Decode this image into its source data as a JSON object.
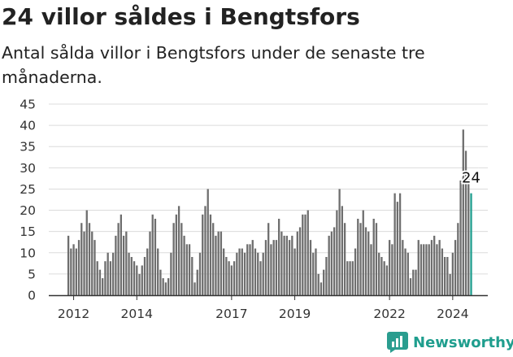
{
  "header": {
    "title": "24 villor såldes i Bengtsfors",
    "subtitle": "Antal sålda villor i Bengtsfors under de senaste tre månaderna."
  },
  "brand": {
    "name": "Newsworthy",
    "icon": "newsworthy-chart-icon",
    "color": "#2a9d8f"
  },
  "colors": {
    "bar": "#6e6e6e",
    "highlight": "#1f9e8e",
    "grid": "#dcdcdc",
    "axis": "#333333"
  },
  "chart_data": {
    "type": "bar",
    "title": "24 villor såldes i Bengtsfors",
    "ylim": [
      0,
      45
    ],
    "y_ticks": [
      0,
      5,
      10,
      15,
      20,
      25,
      30,
      35,
      40,
      45
    ],
    "x_tick_labels": [
      {
        "label": "2012",
        "year": 2012
      },
      {
        "label": "2014",
        "year": 2014
      },
      {
        "label": "2017",
        "year": 2017
      },
      {
        "label": "2019",
        "year": 2019
      },
      {
        "label": "2022",
        "year": 2022
      },
      {
        "label": "2024",
        "year": 2024
      }
    ],
    "grid": true,
    "period": "monthly, rolling three-month total",
    "start": "2011-11",
    "highlight_label": "24",
    "values": [
      14,
      11,
      12,
      11,
      13,
      17,
      15,
      20,
      17,
      15,
      13,
      8,
      6,
      4,
      8,
      10,
      8,
      10,
      14,
      17,
      19,
      14,
      15,
      10,
      9,
      8,
      7,
      5,
      7,
      9,
      11,
      15,
      19,
      18,
      11,
      6,
      4,
      3,
      4,
      10,
      17,
      19,
      21,
      17,
      14,
      12,
      12,
      9,
      3,
      6,
      10,
      19,
      21,
      25,
      19,
      17,
      14,
      15,
      15,
      11,
      9,
      8,
      7,
      8,
      10,
      11,
      11,
      10,
      12,
      12,
      13,
      11,
      10,
      8,
      10,
      13,
      17,
      12,
      13,
      13,
      18,
      15,
      14,
      14,
      13,
      14,
      11,
      15,
      16,
      19,
      19,
      20,
      13,
      10,
      11,
      5,
      3,
      6,
      9,
      14,
      15,
      16,
      20,
      25,
      21,
      17,
      8,
      8,
      8,
      11,
      18,
      17,
      20,
      16,
      15,
      12,
      18,
      17,
      10,
      9,
      8,
      7,
      13,
      12,
      24,
      22,
      24,
      13,
      11,
      10,
      4,
      6,
      6,
      13,
      12,
      12,
      12,
      12,
      13,
      14,
      12,
      13,
      11,
      9,
      9,
      5,
      10,
      13,
      17,
      27,
      39,
      34,
      29,
      24
    ]
  }
}
